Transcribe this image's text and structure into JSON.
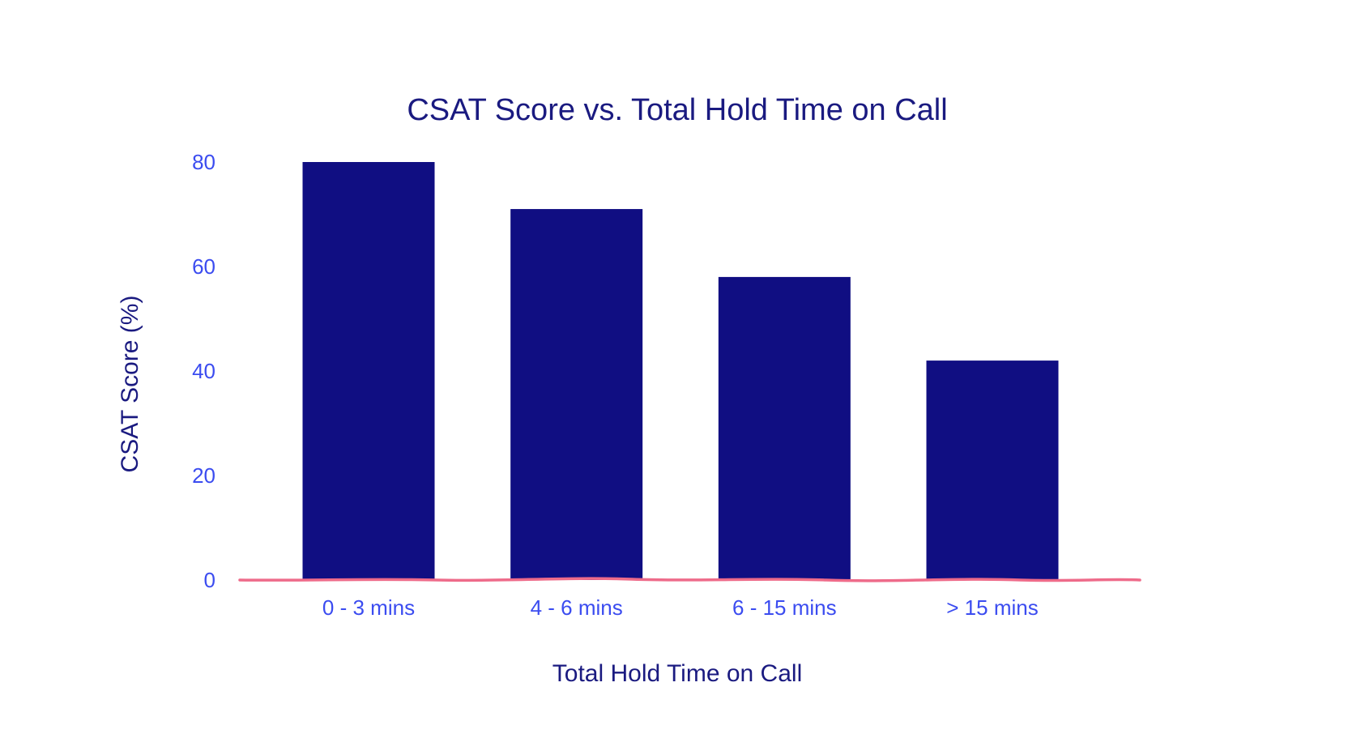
{
  "chart_data": {
    "type": "bar",
    "title": "CSAT Score vs. Total Hold Time on Call",
    "xlabel": "Total Hold Time on Call",
    "ylabel": "CSAT Score (%)",
    "categories": [
      "0 - 3 mins",
      "4 - 6 mins",
      "6 - 15 mins",
      "> 15 mins"
    ],
    "values": [
      80,
      71,
      58,
      42
    ],
    "ylim": [
      0,
      80
    ],
    "yticks": [
      0,
      20,
      40,
      60,
      80
    ],
    "grid": false,
    "legend": "none",
    "colors": {
      "bar": "#100e82",
      "tick_text": "#3b4cf0",
      "title_text": "#1a1a80",
      "baseline": "#ee6b8a"
    }
  }
}
